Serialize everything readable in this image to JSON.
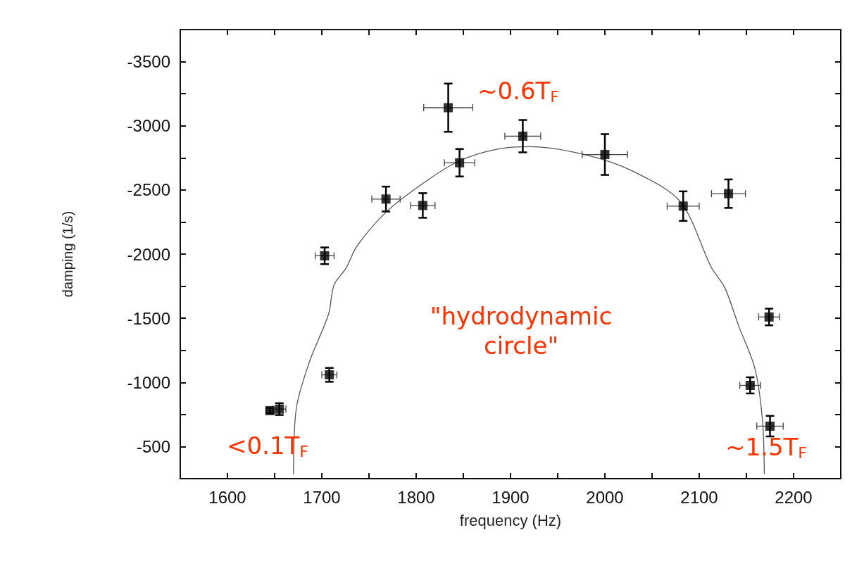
{
  "chart_data": {
    "type": "scatter",
    "xlabel": "frequency (Hz)",
    "ylabel": "damping (1/s)",
    "xlim": [
      1550,
      2250
    ],
    "xticks": [
      1600,
      {
        "value": 1650,
        "label": null
      },
      1700,
      {
        "value": 1750,
        "label": null
      },
      1800,
      {
        "value": 1850,
        "label": null
      },
      1900,
      {
        "value": 1950,
        "label": null
      },
      2000,
      {
        "value": 2050,
        "label": null
      },
      2100,
      {
        "value": 2150,
        "label": null
      },
      2200
    ],
    "ylim": [
      -250,
      -3750
    ],
    "yticks": [
      {
        "value": -3750,
        "label": null
      },
      -3500,
      {
        "value": -3250,
        "label": null
      },
      -3000,
      {
        "value": -2750,
        "label": null
      },
      -2500,
      {
        "value": -2250,
        "label": null
      },
      -2000,
      {
        "value": -1750,
        "label": null
      },
      -1500,
      {
        "value": -1250,
        "label": null
      },
      -1000,
      {
        "value": -750,
        "label": null
      },
      -500
    ],
    "grid": false,
    "series": [
      {
        "color": "#000000",
        "marker": "square",
        "x": [
          1645,
          1655,
          1703,
          1708,
          1768,
          1807,
          1834,
          1846,
          1913,
          2000,
          2083,
          2131,
          2154,
          2174,
          2175
        ],
        "values": [
          -780,
          -792,
          -1987,
          -1059,
          -2429,
          -2379,
          -3141,
          -2712,
          -2919,
          -2776,
          -2374,
          -2471,
          -977,
          -1510,
          -659
        ],
        "errors": [
          20,
          46,
          65,
          54,
          97,
          96,
          188,
          107,
          126,
          159,
          115,
          111,
          63,
          65,
          80
        ],
        "xerrors": [
          4,
          7,
          10,
          8,
          15,
          13,
          26,
          16,
          19,
          24,
          17,
          18,
          11,
          11,
          14
        ]
      },
      {
        "type": "line",
        "color": "#555555",
        "marker": "none",
        "x": [
          1670,
          1673,
          1687,
          1707,
          1713,
          1726,
          1737,
          1769,
          1811,
          1846,
          1886,
          1921,
          1980,
          2030,
          2080,
          2113,
          2127,
          2142,
          2159,
          2167,
          2169
        ],
        "values": [
          -286,
          -798,
          -1163,
          -1528,
          -1760,
          -1894,
          -2060,
          -2334,
          -2571,
          -2727,
          -2818,
          -2837,
          -2773,
          -2645,
          -2408,
          -1894,
          -1740,
          -1437,
          -1108,
          -706,
          -286
        ]
      }
    ],
    "annotations": [
      "~0.6T$_{F}$",
      "\"hydrodynamic\ncircle\"",
      "<0.1T$_{F}$",
      "~1.5T$_{F}$"
    ]
  }
}
